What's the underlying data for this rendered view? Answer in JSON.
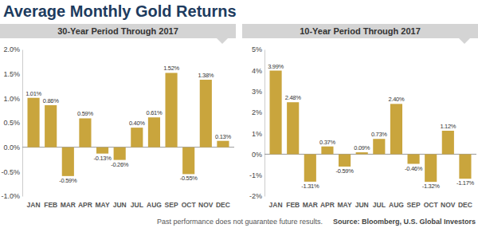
{
  "title": "Average Monthly Gold Returns",
  "footnote": "Past performance does not guarantee future results.",
  "source": "Source: Bloomberg, U.S. Global Investors",
  "chart_data": [
    {
      "type": "bar",
      "title": "30-Year Period Through 2017",
      "categories": [
        "JAN",
        "FEB",
        "MAR",
        "APR",
        "MAY",
        "JUN",
        "JUL",
        "AUG",
        "SEP",
        "OCT",
        "NOV",
        "DEC"
      ],
      "values": [
        1.01,
        0.86,
        -0.59,
        0.59,
        -0.13,
        -0.26,
        0.4,
        0.61,
        1.52,
        -0.55,
        1.38,
        0.13
      ],
      "value_labels": [
        "1.01%",
        "0.86%",
        "-0.59%",
        "0.59%",
        "-0.13%",
        "-0.26%",
        "0.40%",
        "0.61%",
        "1.52%",
        "-0.55%",
        "1.38%",
        "0.13%"
      ],
      "data_labels": true,
      "color": "#c9a53d",
      "ylim": [
        -1.0,
        2.0
      ],
      "yticks": [
        {
          "value": 2.0,
          "label": "2.0%"
        },
        {
          "value": 1.5,
          "label": "1.5%"
        },
        {
          "value": 1.0,
          "label": "1.0%"
        },
        {
          "value": 0.5,
          "label": "0.5%"
        },
        {
          "value": 0,
          "label": "0.0%"
        },
        {
          "value": -0.5,
          "label": "-0.5%"
        },
        {
          "value": -1.0,
          "label": "-1.0%"
        }
      ]
    },
    {
      "type": "bar",
      "title": "10-Year Period Through 2017",
      "categories": [
        "JAN",
        "FEB",
        "MAR",
        "APR",
        "MAY",
        "JUN",
        "JUL",
        "AUG",
        "SEP",
        "OCT",
        "NOV",
        "DEC"
      ],
      "values": [
        3.99,
        2.48,
        -1.31,
        0.37,
        -0.59,
        0.09,
        0.73,
        2.4,
        -0.46,
        -1.32,
        1.12,
        -1.17
      ],
      "value_labels": [
        "3.99%",
        "2.48%",
        "-1.31%",
        "0.37%",
        "-0.59%",
        "0.09%",
        "0.73%",
        "2.40%",
        "-0.46%",
        "-1.32%",
        "1.12%",
        "-1.17%"
      ],
      "data_labels": true,
      "color": "#c9a53d",
      "ylim": [
        -2,
        5
      ],
      "yticks": [
        {
          "value": 5,
          "label": "5%"
        },
        {
          "value": 4,
          "label": "4%"
        },
        {
          "value": 3,
          "label": "3%"
        },
        {
          "value": 2,
          "label": "2%"
        },
        {
          "value": 1,
          "label": "1%"
        },
        {
          "value": 0,
          "label": "0%"
        },
        {
          "value": -1,
          "label": "-1%"
        },
        {
          "value": -2,
          "label": "-2%"
        }
      ]
    }
  ]
}
